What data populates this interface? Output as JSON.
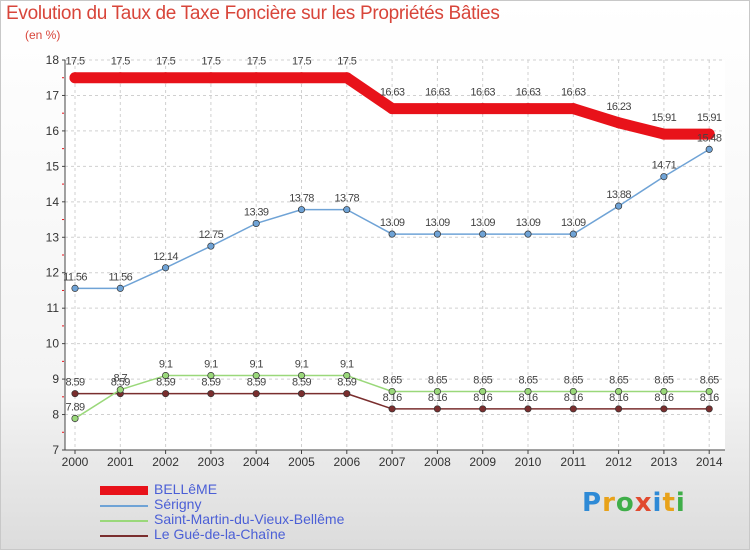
{
  "chart_data": {
    "type": "line",
    "title": "Evolution du Taux de Taxe Foncière sur les Propriétés Bâties",
    "ylabel": "(en %)",
    "xlabel": "",
    "ylim": [
      7,
      18
    ],
    "y_ticks": [
      7,
      8,
      9,
      10,
      11,
      12,
      13,
      14,
      15,
      16,
      17,
      18
    ],
    "categories": [
      "2000",
      "2001",
      "2002",
      "2003",
      "2004",
      "2005",
      "2006",
      "2007",
      "2008",
      "2009",
      "2010",
      "2011",
      "2012",
      "2013",
      "2014"
    ],
    "series": [
      {
        "name": "BELLêME",
        "color": "#e8121a",
        "values": [
          17.5,
          17.5,
          17.5,
          17.5,
          17.5,
          17.5,
          17.5,
          16.63,
          16.63,
          16.63,
          16.63,
          16.63,
          16.23,
          15.91,
          15.91
        ],
        "labels": [
          "17.5",
          "17.5",
          "17.5",
          "17.5",
          "17.5",
          "17.5",
          "17.5",
          "16.63",
          "16.63",
          "16.63",
          "16.63",
          "16.63",
          "16.23",
          "15.91",
          "15.91"
        ]
      },
      {
        "name": "Sérigny",
        "color": "#6fa3d6",
        "values": [
          11.56,
          11.56,
          12.14,
          12.75,
          13.39,
          13.78,
          13.78,
          13.09,
          13.09,
          13.09,
          13.09,
          13.09,
          13.88,
          14.71,
          15.48
        ],
        "labels": [
          "11.56",
          "11.56",
          "12.14",
          "12.75",
          "13.39",
          "13.78",
          "13.78",
          "13.09",
          "13.09",
          "13.09",
          "13.09",
          "13.09",
          "13.88",
          "14.71",
          "15.48"
        ]
      },
      {
        "name": "Saint-Martin-du-Vieux-Bellême",
        "color": "#9ad87a",
        "values": [
          7.89,
          8.7,
          9.1,
          9.1,
          9.1,
          9.1,
          9.1,
          8.65,
          8.65,
          8.65,
          8.65,
          8.65,
          8.65,
          8.65,
          8.65
        ],
        "labels": [
          "7.89",
          "8.7",
          "9.1",
          "9.1",
          "9.1",
          "9.1",
          "9.1",
          "8.65",
          "8.65",
          "8.65",
          "8.65",
          "8.65",
          "8.65",
          "8.65",
          "8.65"
        ]
      },
      {
        "name": "Le Gué-de-la-Chaîne",
        "color": "#7a2e2e",
        "values": [
          8.59,
          8.59,
          8.59,
          8.59,
          8.59,
          8.59,
          8.59,
          8.16,
          8.16,
          8.16,
          8.16,
          8.16,
          8.16,
          8.16,
          8.16
        ],
        "labels": [
          "8.59",
          "8.59",
          "8.59",
          "8.59",
          "8.59",
          "8.59",
          "8.59",
          "8.16",
          "8.16",
          "8.16",
          "8.16",
          "8.16",
          "8.16",
          "8.16",
          "8.16"
        ]
      }
    ]
  },
  "legend": {
    "items": [
      "BELLêME",
      "Sérigny",
      "Saint-Martin-du-Vieux-Bellême",
      "Le Gué-de-la-Chaîne"
    ]
  },
  "brand": {
    "letters": [
      "P",
      "r",
      "o",
      "x",
      "i",
      "t",
      "i"
    ]
  }
}
